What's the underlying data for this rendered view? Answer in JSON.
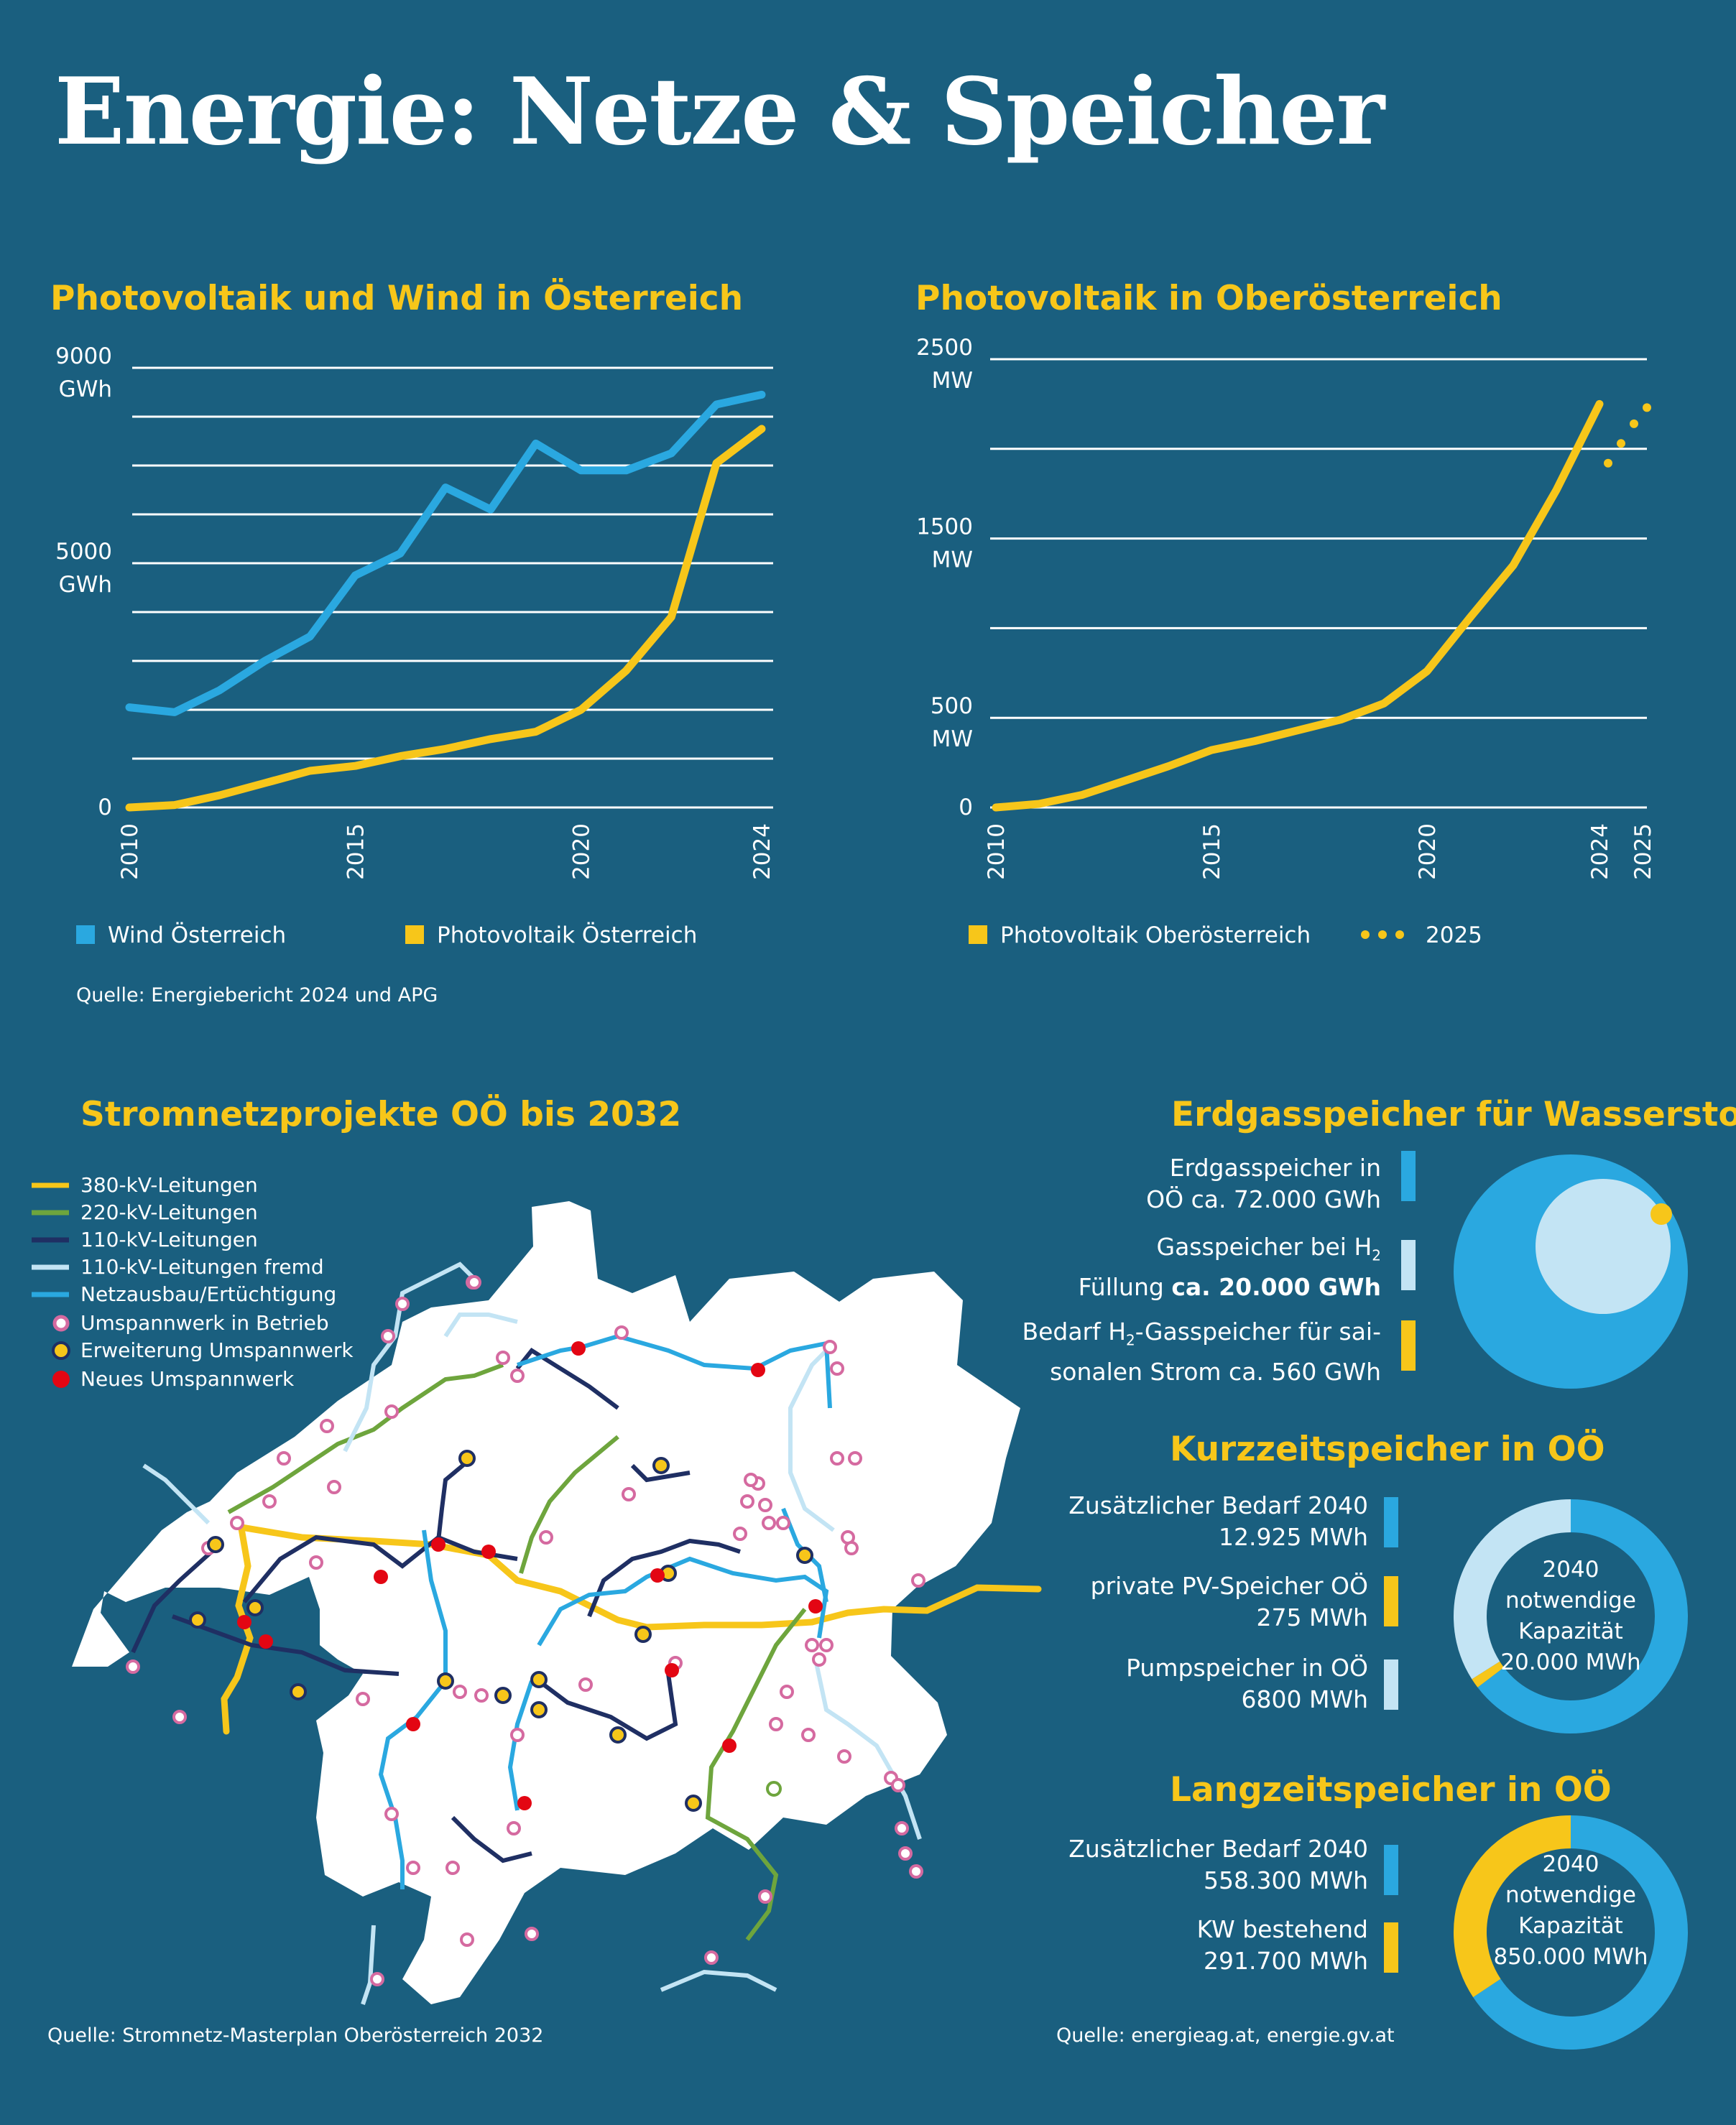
{
  "title": "Energie: Netze & Speicher",
  "colors": {
    "background": "#1a5f7f",
    "wind": "#2aa8e0",
    "pv": "#f7c61a",
    "light_blue": "#c3e4f4",
    "dark_blue": "#1f2f63",
    "green": "#6ea53d",
    "substation_pink": "#d56aa0",
    "new_red": "#e30613"
  },
  "chart_data": [
    {
      "type": "line",
      "title": "Photovoltaik und Wind in Österreich",
      "yaxis": {
        "ticks": [
          {
            "value": 9000,
            "label": "9000",
            "unit": "GWh"
          },
          {
            "value": 5000,
            "label": "5000",
            "unit": "GWh"
          },
          {
            "value": 0,
            "label": "0",
            "unit": ""
          }
        ],
        "range": [
          0,
          9000
        ],
        "grid_step": 1000
      },
      "xaxis": {
        "ticks": [
          "2010",
          "2015",
          "2020",
          "2024"
        ],
        "range": [
          2010,
          2024
        ]
      },
      "x": [
        2010,
        2011,
        2012,
        2013,
        2014,
        2015,
        2016,
        2017,
        2018,
        2019,
        2020,
        2021,
        2022,
        2023,
        2024
      ],
      "series": [
        {
          "name": "Wind Österreich",
          "color": "#2aa8e0",
          "values": [
            2050,
            1950,
            2400,
            3000,
            3500,
            4750,
            5200,
            6550,
            6100,
            7450,
            6900,
            6900,
            7250,
            8250,
            8450
          ]
        },
        {
          "name": "Photovoltaik Österreich",
          "color": "#f7c61a",
          "values": [
            0,
            50,
            250,
            500,
            750,
            850,
            1050,
            1200,
            1400,
            1550,
            2000,
            2800,
            3900,
            7050,
            7750
          ]
        }
      ],
      "legend": "bottom",
      "source": "Quelle: Energiebericht 2024 und APG"
    },
    {
      "type": "line",
      "title": "Photovoltaik in Oberösterreich",
      "yaxis": {
        "ticks": [
          {
            "value": 2500,
            "label": "2500",
            "unit": "MW"
          },
          {
            "value": 1500,
            "label": "1500",
            "unit": "MW"
          },
          {
            "value": 500,
            "label": "500",
            "unit": "MW"
          },
          {
            "value": 0,
            "label": "0",
            "unit": ""
          }
        ],
        "range": [
          0,
          2500
        ],
        "grid_step": 500
      },
      "xaxis": {
        "ticks": [
          "2010",
          "2015",
          "2020",
          "2024",
          "2025"
        ],
        "range": [
          2010,
          2025
        ]
      },
      "x": [
        2010,
        2011,
        2012,
        2013,
        2014,
        2015,
        2016,
        2017,
        2018,
        2019,
        2020,
        2021,
        2022,
        2023,
        2024
      ],
      "series": [
        {
          "name": "Photovoltaik Oberösterreich",
          "color": "#f7c61a",
          "values": [
            0,
            20,
            70,
            150,
            230,
            320,
            370,
            430,
            490,
            580,
            760,
            1060,
            1350,
            1770,
            2250
          ]
        },
        {
          "name": "2025",
          "color": "#f7c61a",
          "style": "dotted",
          "x": [
            2024.2,
            2024.5,
            2024.8,
            2025.1
          ],
          "values": [
            1920,
            2030,
            2140,
            2230
          ]
        }
      ],
      "legend": "bottom"
    },
    {
      "type": "pie",
      "title": "Erdgasspeicher für Wasserstoff",
      "slices": [
        {
          "label": "Erdgasspeicher in OÖ ca. 72.000 GWh",
          "value": 72000,
          "color": "#2aa8e0"
        },
        {
          "label": "Gasspeicher bei H2 Füllung ca. 20.000 GWh",
          "value": 20000,
          "color": "#c3e4f4"
        },
        {
          "label": "Bedarf H2-Gasspeicher für saisonalen Strom ca. 560 GWh",
          "value": 560,
          "color": "#f7c61a"
        }
      ]
    },
    {
      "type": "pie",
      "title": "Kurzzeitspeicher in OÖ",
      "center_label": [
        "2040",
        "notwendige",
        "Kapazität",
        "20.000 MWh"
      ],
      "slices": [
        {
          "label": "Zusätzlicher Bedarf 2040 12.925 MWh",
          "value": 12925,
          "color": "#2aa8e0"
        },
        {
          "label": "private PV-Speicher OÖ 275 MWh",
          "value": 275,
          "color": "#f7c61a"
        },
        {
          "label": "Pumpspeicher in OÖ 6800 MWh",
          "value": 6800,
          "color": "#c3e4f4"
        }
      ]
    },
    {
      "type": "pie",
      "title": "Langzeitspeicher in OÖ",
      "center_label": [
        "2040",
        "notwendige",
        "Kapazität",
        "850.000 MWh"
      ],
      "slices": [
        {
          "label": "Zusätzlicher Bedarf 2040 558.300 MWh",
          "value": 558300,
          "color": "#2aa8e0"
        },
        {
          "label": "KW bestehend 291.700 MWh",
          "value": 291700,
          "color": "#f7c61a"
        }
      ]
    }
  ],
  "charts": {
    "austria": {
      "title": "Photovoltaik und Wind in Österreich",
      "ylabels": [
        {
          "v": "9000",
          "u": "GWh"
        },
        {
          "v": "5000",
          "u": "GWh"
        },
        {
          "v": "0",
          "u": ""
        }
      ],
      "xlabels": [
        "2010",
        "2015",
        "2020",
        "2024"
      ],
      "legend": [
        "Wind Österreich",
        "Photovoltaik Österreich"
      ],
      "source": "Quelle: Energiebericht 2024 und APG"
    },
    "ooe": {
      "title": "Photovoltaik in Oberösterreich",
      "ylabels": [
        {
          "v": "2500",
          "u": "MW"
        },
        {
          "v": "1500",
          "u": "MW"
        },
        {
          "v": "500",
          "u": "MW"
        },
        {
          "v": "0",
          "u": ""
        }
      ],
      "xlabels": [
        "2010",
        "2015",
        "2020",
        "2024",
        "2025"
      ],
      "legend": [
        "Photovoltaik Oberösterreich",
        "2025"
      ]
    }
  },
  "map": {
    "title": "Stromnetzprojekte OÖ bis 2032",
    "legend": [
      "380-kV-Leitungen",
      "220-kV-Leitungen",
      "110-kV-Leitungen",
      "110-kV-Leitungen fremd",
      "Netzausbau/Ertüchtigung",
      "Umspannwerk in Betrieb",
      "Erweiterung Umspannwerk",
      "Neues Umspannwerk"
    ],
    "source": "Quelle: Stromnetz-Masterplan Oberösterreich 2032"
  },
  "storage": {
    "gas": {
      "title": "Erdgasspeicher für Wasserstoff",
      "items": [
        {
          "line1": "Erdgasspeicher in",
          "line2": "OÖ ca. 72.000 GWh"
        },
        {
          "line1": "Gasspeicher bei H",
          "sub1": "2",
          "line2a": "Füllung ",
          "line2b": "ca. 20.000 GWh"
        },
        {
          "line1a": "Bedarf H",
          "sub": "2",
          "line1b": "-Gasspeicher für sai-",
          "line2": "sonalen Strom ca. 560 GWh"
        }
      ]
    },
    "short": {
      "title": "Kurzzeitspeicher in OÖ",
      "items": [
        {
          "line1": "Zusätzlicher Bedarf 2040",
          "line2": "12.925 MWh"
        },
        {
          "line1": "private PV-Speicher OÖ",
          "line2": "275 MWh"
        },
        {
          "line1": "Pumpspeicher in OÖ",
          "line2": "6800 MWh"
        }
      ],
      "center": [
        "2040",
        "notwendige",
        "Kapazität",
        "20.000 MWh"
      ]
    },
    "long": {
      "title": "Langzeitspeicher in OÖ",
      "items": [
        {
          "line1": "Zusätzlicher Bedarf 2040",
          "line2": "558.300 MWh"
        },
        {
          "line1": "KW bestehend",
          "line2": "291.700 MWh"
        }
      ],
      "center": [
        "2040",
        "notwendige",
        "Kapazität",
        "850.000 MWh"
      ]
    },
    "source": "Quelle: energieag.at, energie.gv.at"
  }
}
